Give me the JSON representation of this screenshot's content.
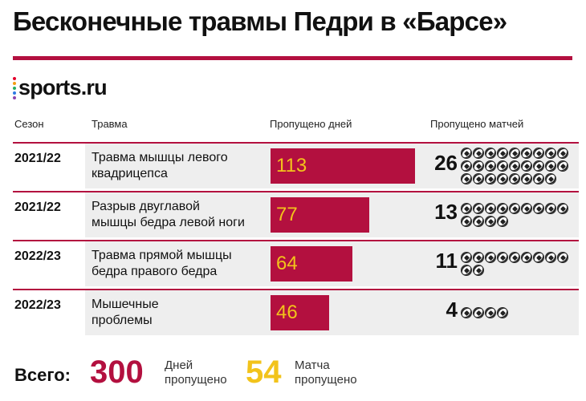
{
  "title": "Бесконечные травмы Педри в «Барсе»",
  "logo": {
    "text": "sports.ru",
    "dot_colors": [
      "#e4002b",
      "#f39c12",
      "#27ae60",
      "#2d7be5",
      "#8e44ad"
    ]
  },
  "headers": {
    "season": "Сезон",
    "injury": "Травма",
    "days": "Пропущено дней",
    "matches": "Пропущено матчей"
  },
  "colors": {
    "accent": "#b3103f",
    "value_text": "#f2c31b",
    "row_bg": "#eeeeee"
  },
  "chart_data": {
    "type": "bar",
    "categories": [
      "2021/22",
      "2021/22",
      "2022/23",
      "2022/23"
    ],
    "series": [
      {
        "name": "Пропущено дней",
        "values": [
          113,
          77,
          64,
          46
        ]
      },
      {
        "name": "Пропущено матчей",
        "values": [
          26,
          13,
          11,
          4
        ]
      }
    ],
    "xlim": [
      0,
      113
    ]
  },
  "rows": [
    {
      "season": "2021/22",
      "injury_line1": "Травма мышцы левого",
      "injury_line2": "квадрицепса",
      "days": "113",
      "matches": "26",
      "matches_count": 26
    },
    {
      "season": "2021/22",
      "injury_line1": "Разрыв двуглавой",
      "injury_line2": "мышцы бедра левой ноги",
      "days": "77",
      "matches": "13",
      "matches_count": 13
    },
    {
      "season": "2022/23",
      "injury_line1": "Травма прямой мышцы",
      "injury_line2": "бедра правого бедра",
      "days": "64",
      "matches": "11",
      "matches_count": 11
    },
    {
      "season": "2022/23",
      "injury_line1": "Мышечные",
      "injury_line2": "проблемы",
      "days": "46",
      "matches": "4",
      "matches_count": 4
    }
  ],
  "totals": {
    "label": "Всего:",
    "days": "300",
    "days_line1": "Дней",
    "days_line2": "пропущено",
    "matches": "54",
    "matches_line1": "Матча",
    "matches_line2": "пропущено"
  }
}
